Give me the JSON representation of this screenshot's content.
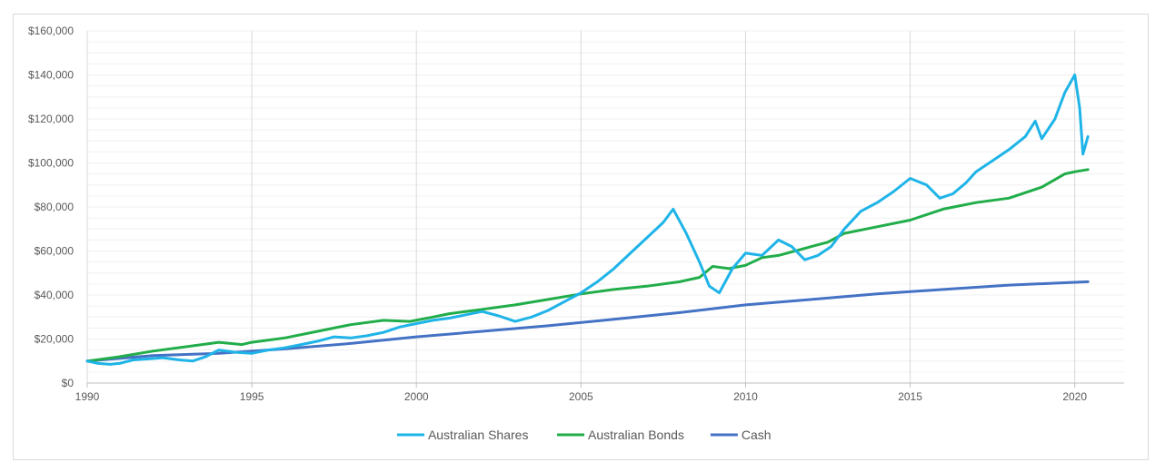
{
  "chart_data": {
    "type": "line",
    "title": "",
    "xlabel": "",
    "ylabel": "",
    "xlim": [
      1990,
      2021.5
    ],
    "ylim": [
      0,
      160000
    ],
    "x_ticks": [
      1990,
      1995,
      2000,
      2005,
      2010,
      2015,
      2020
    ],
    "x_tick_labels": [
      "1990",
      "1995",
      "2000",
      "2005",
      "2010",
      "2015",
      "2020"
    ],
    "y_ticks": [
      0,
      20000,
      40000,
      60000,
      80000,
      100000,
      120000,
      140000,
      160000
    ],
    "y_tick_labels": [
      "$0",
      "$20,000",
      "$40,000",
      "$60,000",
      "$80,000",
      "$100,000",
      "$120,000",
      "$140,000",
      "$160,000"
    ],
    "grid": "vertical major, horizontal minor",
    "legend_position": "bottom",
    "series": [
      {
        "name": "Australian Shares",
        "color": "#1fb4e8",
        "points": [
          [
            1990.0,
            10000
          ],
          [
            1990.3,
            9000
          ],
          [
            1990.7,
            8500
          ],
          [
            1991.0,
            9000
          ],
          [
            1991.4,
            10500
          ],
          [
            1991.9,
            11000
          ],
          [
            1992.3,
            11500
          ],
          [
            1992.8,
            10500
          ],
          [
            1993.2,
            10000
          ],
          [
            1993.6,
            12000
          ],
          [
            1994.0,
            15000
          ],
          [
            1994.5,
            14000
          ],
          [
            1995.0,
            13500
          ],
          [
            1995.5,
            15000
          ],
          [
            1996.0,
            16000
          ],
          [
            1996.5,
            17500
          ],
          [
            1997.0,
            19000
          ],
          [
            1997.5,
            21000
          ],
          [
            1998.0,
            20500
          ],
          [
            1998.5,
            21500
          ],
          [
            1999.0,
            23000
          ],
          [
            1999.5,
            25500
          ],
          [
            2000.0,
            27000
          ],
          [
            2000.5,
            28500
          ],
          [
            2001.0,
            29500
          ],
          [
            2001.5,
            31000
          ],
          [
            2002.0,
            32500
          ],
          [
            2002.5,
            30500
          ],
          [
            2003.0,
            28000
          ],
          [
            2003.5,
            30000
          ],
          [
            2004.0,
            33000
          ],
          [
            2004.5,
            37000
          ],
          [
            2005.0,
            41000
          ],
          [
            2005.5,
            46000
          ],
          [
            2006.0,
            52000
          ],
          [
            2006.5,
            59000
          ],
          [
            2007.0,
            66000
          ],
          [
            2007.5,
            73000
          ],
          [
            2007.8,
            79000
          ],
          [
            2008.2,
            68000
          ],
          [
            2008.6,
            55000
          ],
          [
            2008.9,
            44000
          ],
          [
            2009.2,
            41000
          ],
          [
            2009.6,
            52000
          ],
          [
            2010.0,
            59000
          ],
          [
            2010.5,
            58000
          ],
          [
            2011.0,
            65000
          ],
          [
            2011.4,
            62000
          ],
          [
            2011.8,
            56000
          ],
          [
            2012.2,
            58000
          ],
          [
            2012.6,
            62000
          ],
          [
            2013.0,
            70000
          ],
          [
            2013.5,
            78000
          ],
          [
            2014.0,
            82000
          ],
          [
            2014.5,
            87000
          ],
          [
            2015.0,
            93000
          ],
          [
            2015.5,
            90000
          ],
          [
            2015.9,
            84000
          ],
          [
            2016.3,
            86000
          ],
          [
            2016.7,
            91000
          ],
          [
            2017.0,
            96000
          ],
          [
            2017.5,
            101000
          ],
          [
            2018.0,
            106000
          ],
          [
            2018.5,
            112000
          ],
          [
            2018.8,
            119000
          ],
          [
            2019.0,
            111000
          ],
          [
            2019.4,
            120000
          ],
          [
            2019.7,
            132000
          ],
          [
            2020.0,
            140000
          ],
          [
            2020.15,
            125000
          ],
          [
            2020.25,
            104000
          ],
          [
            2020.4,
            112000
          ]
        ]
      },
      {
        "name": "Australian Bonds",
        "color": "#21ad4a",
        "points": [
          [
            1990.0,
            10000
          ],
          [
            1991.0,
            12000
          ],
          [
            1992.0,
            14500
          ],
          [
            1993.0,
            16500
          ],
          [
            1994.0,
            18500
          ],
          [
            1994.7,
            17500
          ],
          [
            1995.0,
            18500
          ],
          [
            1996.0,
            20500
          ],
          [
            1997.0,
            23500
          ],
          [
            1998.0,
            26500
          ],
          [
            1999.0,
            28500
          ],
          [
            1999.8,
            28000
          ],
          [
            2000.5,
            30000
          ],
          [
            2001.0,
            31500
          ],
          [
            2002.0,
            33500
          ],
          [
            2003.0,
            35500
          ],
          [
            2004.0,
            38000
          ],
          [
            2005.0,
            40500
          ],
          [
            2006.0,
            42500
          ],
          [
            2007.0,
            44000
          ],
          [
            2008.0,
            46000
          ],
          [
            2008.6,
            48000
          ],
          [
            2009.0,
            53000
          ],
          [
            2009.5,
            52000
          ],
          [
            2010.0,
            53500
          ],
          [
            2010.5,
            57000
          ],
          [
            2011.0,
            58000
          ],
          [
            2012.0,
            62000
          ],
          [
            2012.5,
            64000
          ],
          [
            2013.0,
            68000
          ],
          [
            2014.0,
            71000
          ],
          [
            2015.0,
            74000
          ],
          [
            2016.0,
            79000
          ],
          [
            2017.0,
            82000
          ],
          [
            2018.0,
            84000
          ],
          [
            2019.0,
            89000
          ],
          [
            2019.7,
            95000
          ],
          [
            2020.0,
            96000
          ],
          [
            2020.4,
            97000
          ]
        ]
      },
      {
        "name": "Cash",
        "color": "#4472c4",
        "points": [
          [
            1990.0,
            10000
          ],
          [
            1992.0,
            12500
          ],
          [
            1994.0,
            13500
          ],
          [
            1996.0,
            15500
          ],
          [
            1998.0,
            18000
          ],
          [
            2000.0,
            21000
          ],
          [
            2002.0,
            23500
          ],
          [
            2004.0,
            26000
          ],
          [
            2006.0,
            29000
          ],
          [
            2008.0,
            32000
          ],
          [
            2010.0,
            35500
          ],
          [
            2012.0,
            38000
          ],
          [
            2014.0,
            40500
          ],
          [
            2016.0,
            42500
          ],
          [
            2018.0,
            44500
          ],
          [
            2020.4,
            46000
          ]
        ]
      }
    ]
  }
}
